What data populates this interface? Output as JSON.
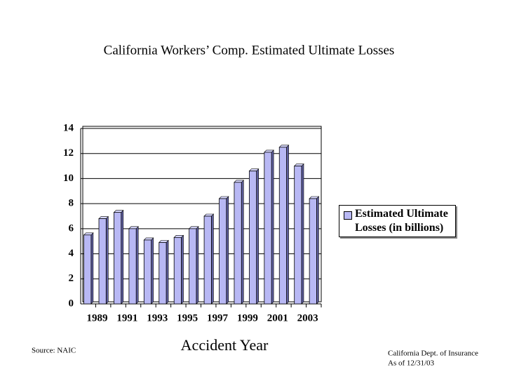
{
  "chart_data": {
    "type": "bar",
    "title": "California Workers’ Comp. Estimated Ultimate Losses",
    "x_label": "Accident Year",
    "annotations": [
      "Source: NAIC",
      "California Dept. of Insurance",
      "As of 12/31/03"
    ],
    "categories": [
      "1989",
      null,
      "1991",
      null,
      "1993",
      null,
      "1995",
      null,
      "1997",
      null,
      "1999",
      null,
      "2001",
      null,
      "2003",
      null
    ],
    "series": [
      {
        "name": "Estimated Ultimate Losses (in billions)",
        "color": "#b8b8f4",
        "values": [
          5.5,
          6.8,
          7.3,
          6.0,
          5.1,
          4.9,
          5.3,
          6.0,
          7.0,
          8.4,
          9.7,
          10.6,
          12.1,
          12.5,
          11.0,
          8.4
        ]
      }
    ],
    "ylim": [
      0,
      14
    ],
    "yticks": [
      0,
      2,
      4,
      6,
      8,
      10,
      12,
      14
    ],
    "grid": true,
    "legend": "right"
  }
}
